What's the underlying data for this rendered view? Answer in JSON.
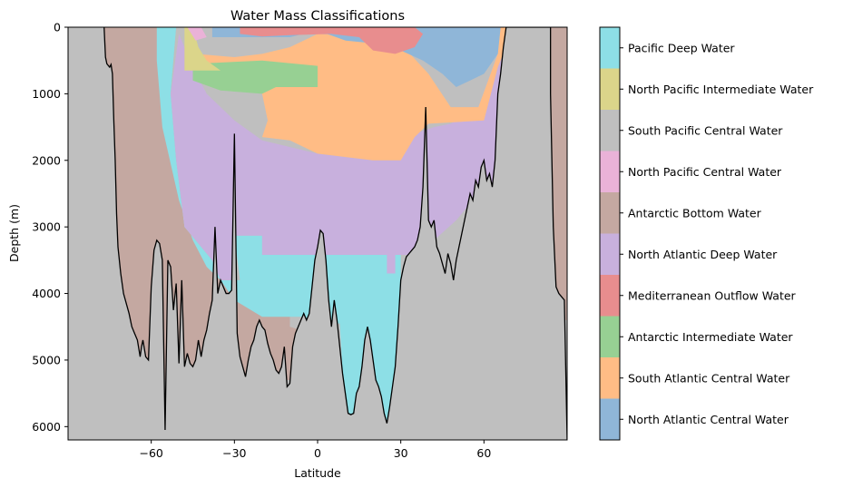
{
  "chart_data": {
    "type": "heatmap",
    "title": "Water Mass Classifications",
    "xlabel": "Latitude",
    "ylabel": "Depth (m)",
    "xlim": [
      -90,
      90
    ],
    "ylim": [
      6200,
      0
    ],
    "xticks": [
      -60,
      -30,
      0,
      30,
      60
    ],
    "yticks": [
      0,
      1000,
      2000,
      3000,
      4000,
      5000,
      6000
    ],
    "background_color": "#bfbfbf",
    "legend": [
      {
        "label": "Pacific Deep Water",
        "color": "#8ddfe6"
      },
      {
        "label": "North Pacific Intermediate Water",
        "color": "#dbd58a"
      },
      {
        "label": "South Pacific Central Water",
        "color": "#bfbfbf"
      },
      {
        "label": "North Pacific Central Water",
        "color": "#eab2d8"
      },
      {
        "label": "Antarctic Bottom Water",
        "color": "#c4a8a1"
      },
      {
        "label": "North Atlantic Deep Water",
        "color": "#c8b0dd"
      },
      {
        "label": "Mediterranean Outflow Water",
        "color": "#e88d8e"
      },
      {
        "label": "Antarctic Intermediate Water",
        "color": "#97d093"
      },
      {
        "label": "South Atlantic Central Water",
        "color": "#ffbc85"
      },
      {
        "label": "North Atlantic Central Water",
        "color": "#8fb6d8"
      }
    ],
    "regions": [
      {
        "mass": "Antarctic Bottom Water",
        "points": [
          [
            -77,
            0
          ],
          [
            -51,
            0
          ],
          [
            -53,
            1000
          ],
          [
            -51,
            2000
          ],
          [
            -48,
            3000
          ],
          [
            -38,
            3500
          ],
          [
            -30,
            4100
          ],
          [
            -10,
            4100
          ],
          [
            -10,
            4500
          ],
          [
            -2,
            4600
          ],
          [
            -3,
            5300
          ],
          [
            -55,
            5300
          ],
          [
            -77,
            5300
          ]
        ]
      },
      {
        "mass": "Antarctic Bottom Water",
        "points": [
          [
            84,
            0
          ],
          [
            90,
            0
          ],
          [
            90,
            4400
          ],
          [
            84,
            4400
          ],
          [
            84,
            2000
          ]
        ]
      },
      {
        "mass": "Pacific Deep Water",
        "points": [
          [
            -58,
            0
          ],
          [
            -51,
            0
          ],
          [
            -53,
            1000
          ],
          [
            -51,
            2000
          ],
          [
            -48,
            3000
          ],
          [
            -38,
            3500
          ],
          [
            -35,
            3800
          ],
          [
            -28,
            3800
          ],
          [
            -30,
            3130
          ],
          [
            -20,
            3130
          ],
          [
            -20,
            3420
          ],
          [
            -5,
            3420
          ],
          [
            5,
            3420
          ],
          [
            25,
            3420
          ],
          [
            30,
            3420
          ],
          [
            30,
            5900
          ],
          [
            10,
            5900
          ],
          [
            8,
            4450
          ],
          [
            -2,
            4450
          ],
          [
            -5,
            4350
          ],
          [
            -20,
            4350
          ],
          [
            -30,
            4100
          ],
          [
            -35,
            3800
          ],
          [
            -40,
            3600
          ],
          [
            -45,
            3200
          ],
          [
            -50,
            2600
          ],
          [
            -56,
            1500
          ],
          [
            -58,
            500
          ]
        ]
      },
      {
        "mass": "North Atlantic Deep Water",
        "points": [
          [
            -50,
            100
          ],
          [
            -45,
            600
          ],
          [
            -40,
            1000
          ],
          [
            -30,
            1400
          ],
          [
            -20,
            1700
          ],
          [
            0,
            1900
          ],
          [
            20,
            2000
          ],
          [
            30,
            2000
          ],
          [
            35,
            1600
          ],
          [
            42,
            1500
          ],
          [
            48,
            1450
          ],
          [
            58,
            1200
          ],
          [
            65,
            400
          ],
          [
            68,
            300
          ],
          [
            68,
            1500
          ],
          [
            62,
            2600
          ],
          [
            56,
            2600
          ],
          [
            50,
            2900
          ],
          [
            42,
            3200
          ],
          [
            35,
            3420
          ],
          [
            28,
            3420
          ],
          [
            28,
            3700
          ],
          [
            25,
            3700
          ],
          [
            25,
            3420
          ],
          [
            -5,
            3420
          ],
          [
            -20,
            3420
          ],
          [
            -20,
            3130
          ],
          [
            -30,
            3130
          ],
          [
            -30,
            3800
          ],
          [
            -35,
            3800
          ],
          [
            -38,
            3500
          ],
          [
            -48,
            3000
          ],
          [
            -51,
            2000
          ],
          [
            -53,
            1000
          ]
        ]
      },
      {
        "mass": "South Atlantic Central Water",
        "points": [
          [
            -44,
            400
          ],
          [
            -30,
            450
          ],
          [
            -20,
            400
          ],
          [
            -10,
            300
          ],
          [
            0,
            100
          ],
          [
            20,
            150
          ],
          [
            30,
            250
          ],
          [
            40,
            700
          ],
          [
            48,
            1200
          ],
          [
            58,
            1200
          ],
          [
            65,
            400
          ],
          [
            66,
            0
          ],
          [
            70,
            0
          ],
          [
            68,
            300
          ],
          [
            65,
            600
          ],
          [
            60,
            1400
          ],
          [
            40,
            1450
          ],
          [
            35,
            1650
          ],
          [
            30,
            2000
          ],
          [
            20,
            2000
          ],
          [
            0,
            1900
          ],
          [
            -10,
            1700
          ],
          [
            -20,
            1650
          ],
          [
            -18,
            1400
          ],
          [
            -20,
            1000
          ],
          [
            -30,
            900
          ],
          [
            -44,
            700
          ]
        ]
      },
      {
        "mass": "North Atlantic Central Water",
        "points": [
          [
            -38,
            0
          ],
          [
            12,
            0
          ],
          [
            25,
            0
          ],
          [
            35,
            0
          ],
          [
            40,
            0
          ],
          [
            50,
            0
          ],
          [
            58,
            0
          ],
          [
            66,
            0
          ],
          [
            65,
            400
          ],
          [
            60,
            700
          ],
          [
            55,
            800
          ],
          [
            50,
            900
          ],
          [
            45,
            700
          ],
          [
            38,
            500
          ],
          [
            30,
            350
          ],
          [
            22,
            250
          ],
          [
            10,
            200
          ],
          [
            0,
            50
          ],
          [
            -10,
            150
          ],
          [
            -25,
            150
          ],
          [
            -38,
            150
          ]
        ]
      },
      {
        "mass": "Mediterranean Outflow Water",
        "points": [
          [
            -28,
            0
          ],
          [
            -8,
            0
          ],
          [
            12,
            0
          ],
          [
            22,
            0
          ],
          [
            35,
            0
          ],
          [
            38,
            100
          ],
          [
            35,
            300
          ],
          [
            28,
            400
          ],
          [
            20,
            350
          ],
          [
            15,
            150
          ],
          [
            5,
            100
          ],
          [
            -10,
            120
          ],
          [
            -20,
            140
          ],
          [
            -28,
            100
          ]
        ]
      },
      {
        "mass": "Antarctic Intermediate Water",
        "points": [
          [
            -45,
            550
          ],
          [
            -20,
            500
          ],
          [
            0,
            580
          ],
          [
            0,
            900
          ],
          [
            -15,
            900
          ],
          [
            -20,
            1000
          ],
          [
            -35,
            950
          ],
          [
            -45,
            800
          ]
        ]
      },
      {
        "mass": "North Pacific Intermediate Water",
        "points": [
          [
            -48,
            0
          ],
          [
            -45,
            0
          ],
          [
            -43,
            300
          ],
          [
            -40,
            500
          ],
          [
            -35,
            650
          ],
          [
            -48,
            650
          ]
        ]
      },
      {
        "mass": "North Pacific Central Water",
        "points": [
          [
            -47,
            0
          ],
          [
            -42,
            0
          ],
          [
            -40,
            150
          ],
          [
            -44,
            200
          ]
        ]
      }
    ],
    "bathymetry_line": [
      [
        -77,
        0
      ],
      [
        -76.5,
        450
      ],
      [
        -76,
        550
      ],
      [
        -75,
        600
      ],
      [
        -74.5,
        560
      ],
      [
        -74,
        700
      ],
      [
        -73.5,
        1400
      ],
      [
        -73,
        2000
      ],
      [
        -72.5,
        2800
      ],
      [
        -72,
        3300
      ],
      [
        -71,
        3700
      ],
      [
        -70,
        4000
      ],
      [
        -68,
        4300
      ],
      [
        -67,
        4500
      ],
      [
        -66,
        4600
      ],
      [
        -65,
        4700
      ],
      [
        -64,
        4950
      ],
      [
        -63.5,
        4800
      ],
      [
        -63,
        4700
      ],
      [
        -62,
        4950
      ],
      [
        -61,
        5000
      ],
      [
        -60,
        3900
      ],
      [
        -59,
        3350
      ],
      [
        -58,
        3200
      ],
      [
        -57,
        3250
      ],
      [
        -56,
        3500
      ],
      [
        -55,
        6050
      ],
      [
        -54,
        3500
      ],
      [
        -53,
        3600
      ],
      [
        -52,
        4250
      ],
      [
        -51,
        3850
      ],
      [
        -50,
        5050
      ],
      [
        -49,
        3800
      ],
      [
        -48,
        5100
      ],
      [
        -47,
        4900
      ],
      [
        -46,
        5050
      ],
      [
        -45,
        5100
      ],
      [
        -44,
        5000
      ],
      [
        -43,
        4700
      ],
      [
        -42,
        4950
      ],
      [
        -41,
        4700
      ],
      [
        -40,
        4550
      ],
      [
        -39,
        4300
      ],
      [
        -38,
        4100
      ],
      [
        -37,
        3000
      ],
      [
        -36,
        4000
      ],
      [
        -35,
        3800
      ],
      [
        -34,
        3900
      ],
      [
        -33,
        4000
      ],
      [
        -32,
        4000
      ],
      [
        -31,
        3950
      ],
      [
        -30,
        1600
      ],
      [
        -29,
        4600
      ],
      [
        -28,
        4950
      ],
      [
        -27,
        5100
      ],
      [
        -26,
        5250
      ],
      [
        -25,
        5000
      ],
      [
        -24,
        4800
      ],
      [
        -23,
        4700
      ],
      [
        -22,
        4500
      ],
      [
        -21,
        4400
      ],
      [
        -20,
        4500
      ],
      [
        -19,
        4550
      ],
      [
        -18,
        4750
      ],
      [
        -17,
        4900
      ],
      [
        -16,
        5000
      ],
      [
        -15,
        5150
      ],
      [
        -14,
        5200
      ],
      [
        -13,
        5100
      ],
      [
        -12,
        4800
      ],
      [
        -11,
        5400
      ],
      [
        -10,
        5350
      ],
      [
        -9,
        4800
      ],
      [
        -8,
        4600
      ],
      [
        -7,
        4500
      ],
      [
        -6,
        4400
      ],
      [
        -5,
        4300
      ],
      [
        -4,
        4400
      ],
      [
        -3,
        4300
      ],
      [
        -2,
        3900
      ],
      [
        -1,
        3500
      ],
      [
        0,
        3300
      ],
      [
        1,
        3050
      ],
      [
        2,
        3100
      ],
      [
        3,
        3500
      ],
      [
        4,
        4100
      ],
      [
        5,
        4500
      ],
      [
        6,
        4100
      ],
      [
        7,
        4400
      ],
      [
        8,
        4800
      ],
      [
        9,
        5200
      ],
      [
        10,
        5500
      ],
      [
        11,
        5800
      ],
      [
        12,
        5820
      ],
      [
        13,
        5800
      ],
      [
        14,
        5500
      ],
      [
        15,
        5400
      ],
      [
        16,
        5100
      ],
      [
        17,
        4700
      ],
      [
        18,
        4500
      ],
      [
        19,
        4700
      ],
      [
        20,
        5000
      ],
      [
        21,
        5300
      ],
      [
        22,
        5400
      ],
      [
        23,
        5550
      ],
      [
        24,
        5800
      ],
      [
        25,
        5950
      ],
      [
        26,
        5700
      ],
      [
        27,
        5400
      ],
      [
        28,
        5100
      ],
      [
        29,
        4500
      ],
      [
        30,
        3800
      ],
      [
        31,
        3600
      ],
      [
        32,
        3450
      ],
      [
        33,
        3400
      ],
      [
        34,
        3350
      ],
      [
        35,
        3300
      ],
      [
        36,
        3200
      ],
      [
        37,
        3000
      ],
      [
        38,
        2400
      ],
      [
        39,
        1200
      ],
      [
        40,
        2900
      ],
      [
        41,
        3000
      ],
      [
        42,
        2900
      ],
      [
        43,
        3300
      ],
      [
        44,
        3400
      ],
      [
        45,
        3550
      ],
      [
        46,
        3700
      ],
      [
        47,
        3400
      ],
      [
        48,
        3550
      ],
      [
        49,
        3800
      ],
      [
        50,
        3500
      ],
      [
        51,
        3300
      ],
      [
        52,
        3100
      ],
      [
        53,
        2900
      ],
      [
        54,
        2700
      ],
      [
        55,
        2500
      ],
      [
        56,
        2600
      ],
      [
        57,
        2300
      ],
      [
        58,
        2400
      ],
      [
        59,
        2100
      ],
      [
        60,
        2000
      ],
      [
        61,
        2300
      ],
      [
        62,
        2200
      ],
      [
        63,
        2400
      ],
      [
        64,
        2000
      ],
      [
        65,
        1000
      ],
      [
        66,
        700
      ],
      [
        67,
        300
      ],
      [
        68,
        0
      ],
      [
        70,
        0
      ],
      [
        84,
        0
      ],
      [
        84,
        1000
      ],
      [
        85,
        3000
      ],
      [
        86,
        3900
      ],
      [
        87,
        4000
      ],
      [
        88,
        4050
      ],
      [
        89,
        4100
      ],
      [
        90,
        6200
      ]
    ]
  }
}
